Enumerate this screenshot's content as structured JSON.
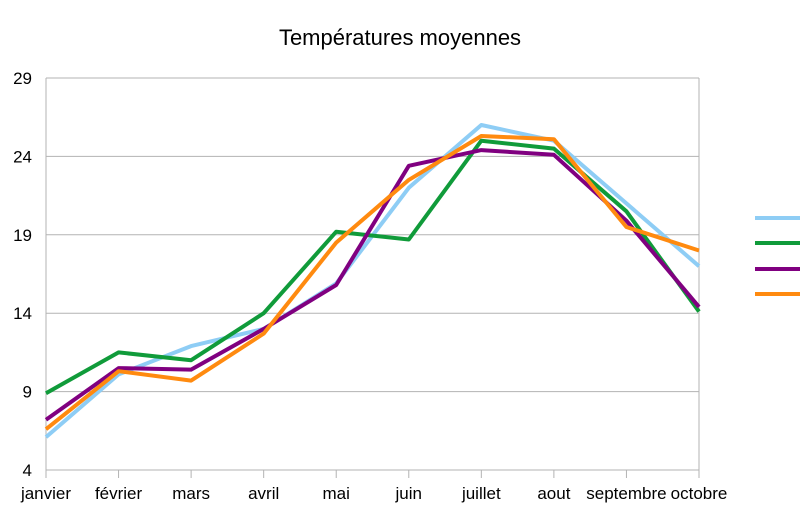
{
  "chart_data": {
    "type": "line",
    "title": "Températures moyennes",
    "xlabel": "",
    "ylabel": "",
    "categories": [
      "janvier",
      "février",
      "mars",
      "avril",
      "mai",
      "juin",
      "juillet",
      "aout",
      "septembre",
      "octobre"
    ],
    "yticks": [
      4,
      9,
      14,
      19,
      24,
      29
    ],
    "ylim": [
      4,
      29
    ],
    "grid": true,
    "legend_position": "right",
    "series": [
      {
        "color": "#8ecdf5",
        "values": [
          6.1,
          10.1,
          11.9,
          13.0,
          15.9,
          22.0,
          26.0,
          25.0,
          21.0,
          17.0
        ]
      },
      {
        "color": "#109b3a",
        "values": [
          8.9,
          11.5,
          11.0,
          14.0,
          19.2,
          18.7,
          25.0,
          24.5,
          20.5,
          14.1
        ]
      },
      {
        "color": "#800080",
        "values": [
          7.2,
          10.5,
          10.4,
          13.0,
          15.8,
          23.4,
          24.4,
          24.1,
          19.9,
          14.4
        ]
      },
      {
        "color": "#ff8a0f",
        "values": [
          6.6,
          10.3,
          9.7,
          12.7,
          18.5,
          22.5,
          25.3,
          25.1,
          19.5,
          18.0
        ]
      }
    ]
  }
}
